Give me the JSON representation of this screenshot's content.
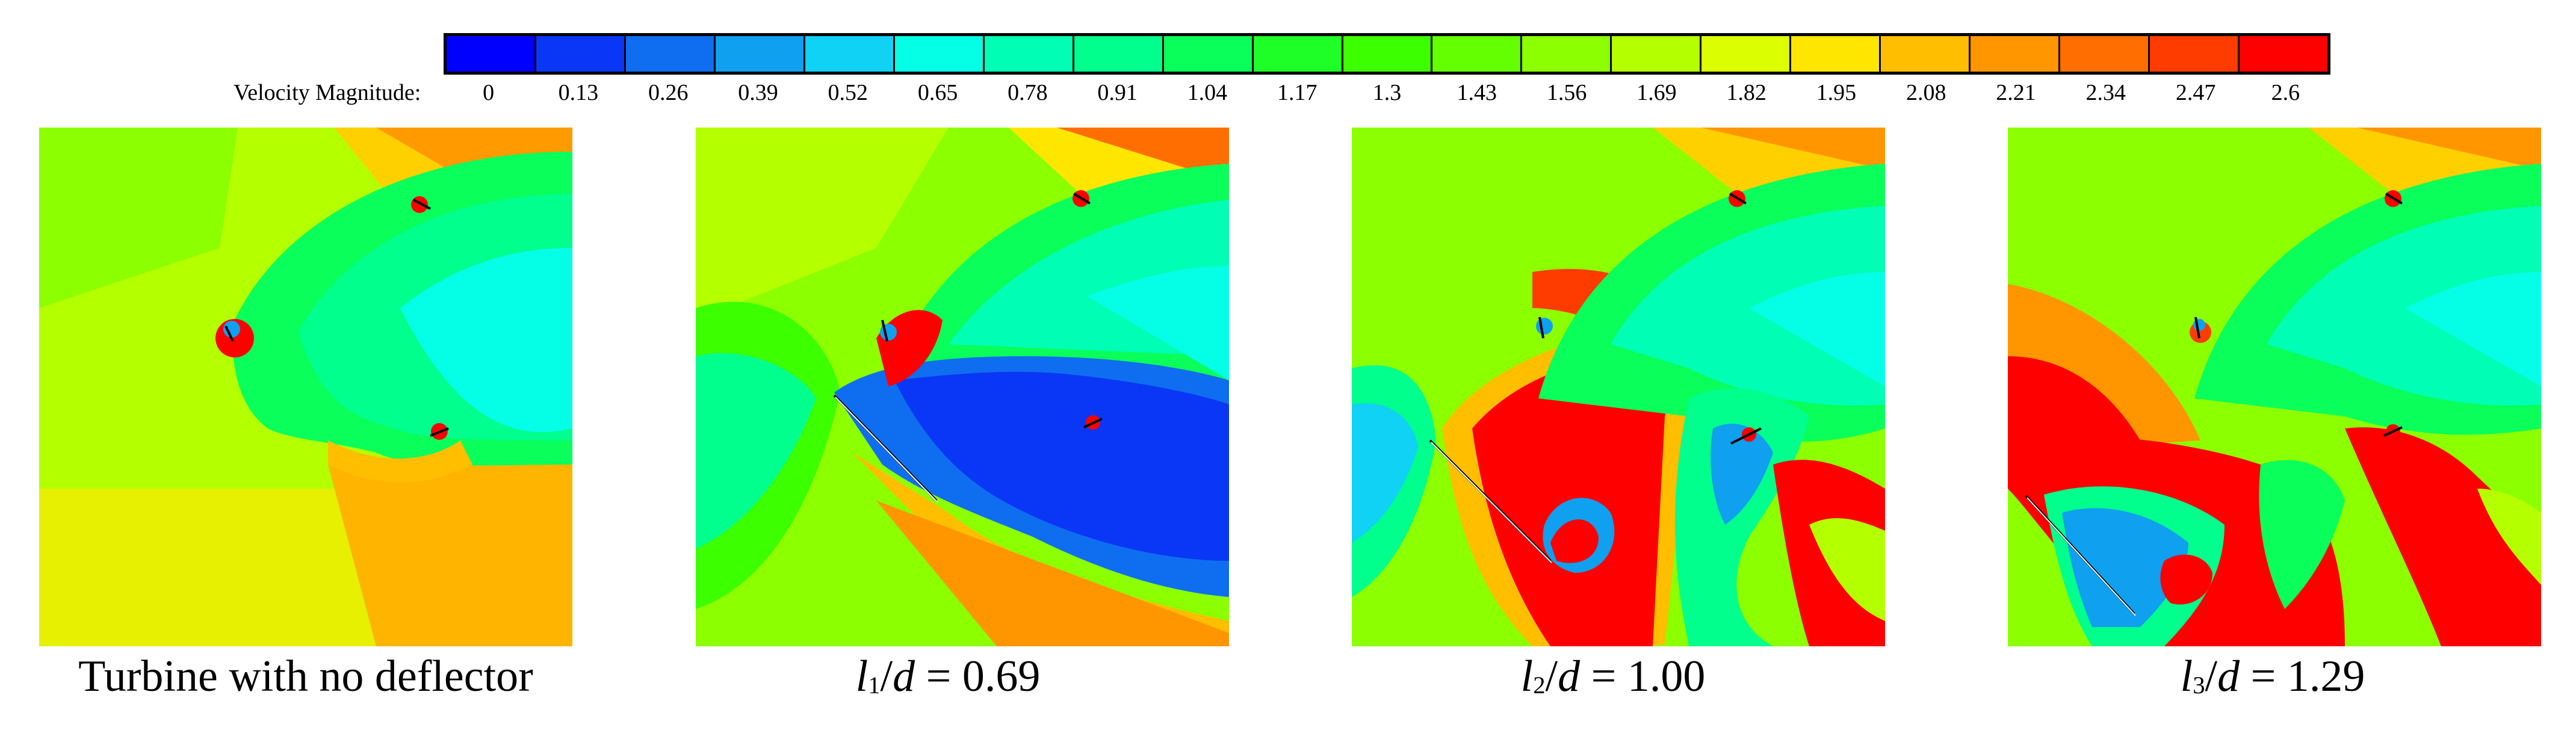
{
  "colorbar": {
    "title": "Velocity Magnitude:",
    "ticks": [
      "0",
      "0.13",
      "0.26",
      "0.39",
      "0.52",
      "0.65",
      "0.78",
      "0.91",
      "1.04",
      "1.17",
      "1.3",
      "1.43",
      "1.56",
      "1.69",
      "1.82",
      "1.95",
      "2.08",
      "2.21",
      "2.34",
      "2.47",
      "2.6"
    ],
    "colors": [
      "#0000ff",
      "#0a37f5",
      "#0f6ef0",
      "#0fa0f0",
      "#0fd2f5",
      "#05ffe6",
      "#00ffb4",
      "#00ff8c",
      "#0aff5a",
      "#1eff28",
      "#3cff00",
      "#64ff00",
      "#8cff00",
      "#b4ff00",
      "#dcff00",
      "#ffe600",
      "#ffbe00",
      "#ff9600",
      "#ff6e00",
      "#ff3c00",
      "#ff0000"
    ]
  },
  "panels": [
    {
      "caption_text": "Turbine with no deflector"
    },
    {
      "l": "l",
      "sub": "1",
      "d": "d",
      "eq": " = 0.69"
    },
    {
      "l": "l",
      "sub": "2",
      "d": "d",
      "eq": " = 1.00"
    },
    {
      "l": "l",
      "sub": "3",
      "d": "d",
      "eq": " = 1.29"
    }
  ]
}
